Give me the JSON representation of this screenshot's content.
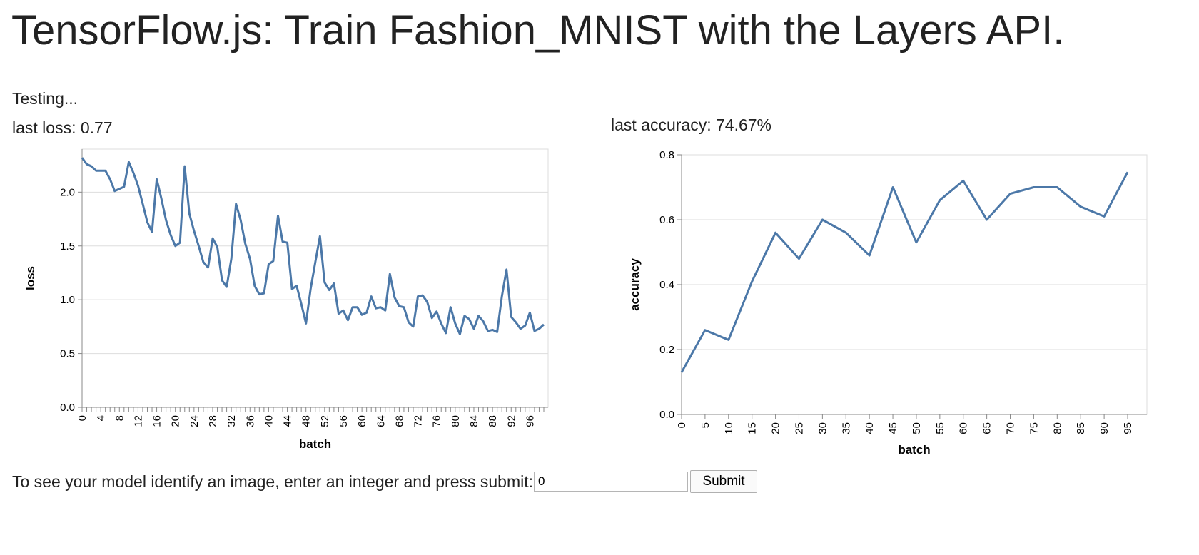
{
  "page": {
    "title": "TensorFlow.js: Train Fashion_MNIST with the Layers API.",
    "status": "Testing...",
    "last_loss": "last loss: 0.77",
    "last_accuracy": "last accuracy: 74.67%"
  },
  "predict": {
    "label": "To see your model identify an image, enter an integer and press submit:",
    "input_value": "0",
    "submit_label": "Submit"
  },
  "chart_data": [
    {
      "type": "line",
      "xlabel": "batch",
      "ylabel": "loss",
      "ylim": [
        0,
        2.4
      ],
      "yticks": [
        "0.0",
        "0.5",
        "1.0",
        "1.5",
        "2.0"
      ],
      "xlim": [
        0,
        99
      ],
      "xtick_step": 4,
      "grid": true,
      "line_color": "#4c78a8",
      "x": [
        0,
        1,
        2,
        3,
        4,
        5,
        6,
        7,
        8,
        9,
        10,
        11,
        12,
        13,
        14,
        15,
        16,
        17,
        18,
        19,
        20,
        21,
        22,
        23,
        24,
        25,
        26,
        27,
        28,
        29,
        30,
        31,
        32,
        33,
        34,
        35,
        36,
        37,
        38,
        39,
        40,
        41,
        42,
        43,
        44,
        45,
        46,
        47,
        48,
        49,
        50,
        51,
        52,
        53,
        54,
        55,
        56,
        57,
        58,
        59,
        60,
        61,
        62,
        63,
        64,
        65,
        66,
        67,
        68,
        69,
        70,
        71,
        72,
        73,
        74,
        75,
        76,
        77,
        78,
        79,
        80,
        81,
        82,
        83,
        84,
        85,
        86,
        87,
        88,
        89,
        90,
        91,
        92,
        93,
        94,
        95,
        96,
        97,
        98,
        99
      ],
      "y": [
        2.32,
        2.26,
        2.24,
        2.2,
        2.2,
        2.2,
        2.12,
        2.01,
        2.03,
        2.05,
        2.28,
        2.18,
        2.06,
        1.89,
        1.72,
        1.63,
        2.12,
        1.94,
        1.74,
        1.6,
        1.5,
        1.53,
        2.24,
        1.8,
        1.64,
        1.5,
        1.35,
        1.3,
        1.57,
        1.49,
        1.18,
        1.12,
        1.38,
        1.89,
        1.74,
        1.52,
        1.38,
        1.13,
        1.05,
        1.06,
        1.33,
        1.36,
        1.78,
        1.54,
        1.53,
        1.1,
        1.13,
        0.96,
        0.78,
        1.1,
        1.35,
        1.59,
        1.16,
        1.09,
        1.15,
        0.87,
        0.9,
        0.81,
        0.93,
        0.93,
        0.86,
        0.88,
        1.03,
        0.92,
        0.93,
        0.9,
        1.24,
        1.02,
        0.94,
        0.93,
        0.79,
        0.75,
        1.03,
        1.04,
        0.98,
        0.83,
        0.89,
        0.78,
        0.69,
        0.93,
        0.78,
        0.68,
        0.85,
        0.82,
        0.73,
        0.85,
        0.8,
        0.71,
        0.72,
        0.7,
        1.03,
        1.28,
        0.84,
        0.79,
        0.73,
        0.76,
        0.88,
        0.71,
        0.73,
        0.77
      ]
    },
    {
      "type": "line",
      "xlabel": "batch",
      "ylabel": "accuracy",
      "ylim": [
        0,
        0.8
      ],
      "yticks": [
        "0.0",
        "0.2",
        "0.4",
        "0.6",
        "0.8"
      ],
      "xticks": [
        "0",
        "5",
        "10",
        "15",
        "20",
        "25",
        "30",
        "35",
        "40",
        "45",
        "50",
        "55",
        "60",
        "65",
        "70",
        "75",
        "80",
        "85",
        "90",
        "95"
      ],
      "xlim": [
        0,
        95
      ],
      "grid": true,
      "line_color": "#4c78a8",
      "x": [
        0,
        5,
        10,
        15,
        20,
        25,
        30,
        35,
        40,
        45,
        50,
        55,
        60,
        65,
        70,
        75,
        80,
        85,
        90,
        95
      ],
      "y": [
        0.13,
        0.26,
        0.23,
        0.41,
        0.56,
        0.48,
        0.6,
        0.56,
        0.49,
        0.7,
        0.53,
        0.66,
        0.72,
        0.6,
        0.68,
        0.7,
        0.7,
        0.64,
        0.61,
        0.7467
      ]
    }
  ]
}
